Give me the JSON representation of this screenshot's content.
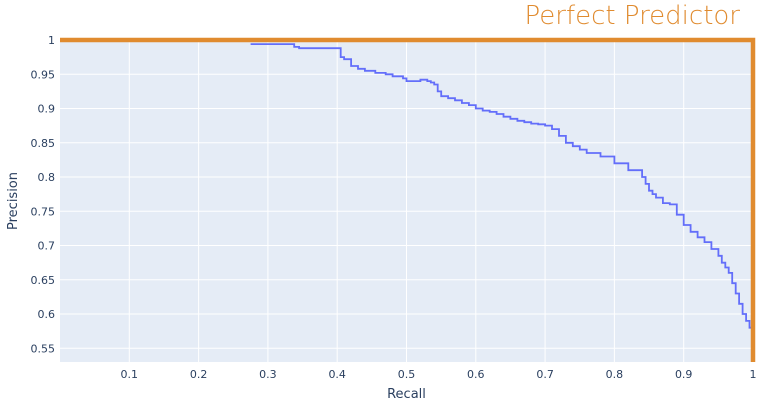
{
  "chart_data": {
    "type": "line",
    "xlabel": "Recall",
    "ylabel": "Precision",
    "xlim": [
      0,
      1.0
    ],
    "ylim": [
      0.53,
      1.0
    ],
    "x_ticks": [
      0.1,
      0.2,
      0.3,
      0.4,
      0.5,
      0.6,
      0.7,
      0.8,
      0.9,
      1
    ],
    "x_tick_labels": [
      "0.1",
      "0.2",
      "0.3",
      "0.4",
      "0.5",
      "0.6",
      "0.7",
      "0.8",
      "0.9",
      "1"
    ],
    "y_ticks": [
      0.55,
      0.6,
      0.65,
      0.7,
      0.75,
      0.8,
      0.85,
      0.9,
      0.95,
      1
    ],
    "y_tick_labels": [
      "0.55",
      "0.6",
      "0.65",
      "0.7",
      "0.75",
      "0.8",
      "0.85",
      "0.9",
      "0.95",
      "1"
    ],
    "grid": true,
    "annotation": {
      "text": "Perfect Predictor",
      "color": "#e08b2f"
    },
    "series": [
      {
        "color": "#636efa",
        "x": [
          0.275,
          0.335,
          0.338,
          0.345,
          0.4,
          0.405,
          0.41,
          0.42,
          0.43,
          0.44,
          0.455,
          0.47,
          0.48,
          0.495,
          0.5,
          0.51,
          0.52,
          0.53,
          0.535,
          0.54,
          0.545,
          0.55,
          0.56,
          0.57,
          0.58,
          0.59,
          0.6,
          0.61,
          0.62,
          0.63,
          0.64,
          0.65,
          0.66,
          0.67,
          0.68,
          0.69,
          0.7,
          0.71,
          0.72,
          0.73,
          0.74,
          0.75,
          0.76,
          0.78,
          0.8,
          0.82,
          0.84,
          0.845,
          0.85,
          0.855,
          0.86,
          0.87,
          0.88,
          0.89,
          0.9,
          0.91,
          0.92,
          0.93,
          0.94,
          0.95,
          0.955,
          0.96,
          0.965,
          0.97,
          0.975,
          0.98,
          0.985,
          0.99,
          0.995,
          1.0
        ],
        "y": [
          0.994,
          0.994,
          0.99,
          0.988,
          0.988,
          0.975,
          0.972,
          0.962,
          0.958,
          0.955,
          0.952,
          0.95,
          0.947,
          0.944,
          0.94,
          0.94,
          0.942,
          0.94,
          0.938,
          0.935,
          0.925,
          0.918,
          0.915,
          0.912,
          0.908,
          0.905,
          0.9,
          0.897,
          0.895,
          0.892,
          0.888,
          0.885,
          0.882,
          0.88,
          0.878,
          0.877,
          0.875,
          0.87,
          0.86,
          0.85,
          0.845,
          0.84,
          0.835,
          0.83,
          0.82,
          0.81,
          0.8,
          0.79,
          0.78,
          0.775,
          0.77,
          0.762,
          0.76,
          0.745,
          0.73,
          0.72,
          0.712,
          0.705,
          0.695,
          0.685,
          0.675,
          0.668,
          0.66,
          0.645,
          0.63,
          0.615,
          0.6,
          0.59,
          0.58,
          0.572
        ]
      },
      {
        "color": "#e08b2f",
        "x": [
          0,
          1,
          1
        ],
        "y": [
          1,
          1,
          0.53
        ]
      }
    ]
  }
}
